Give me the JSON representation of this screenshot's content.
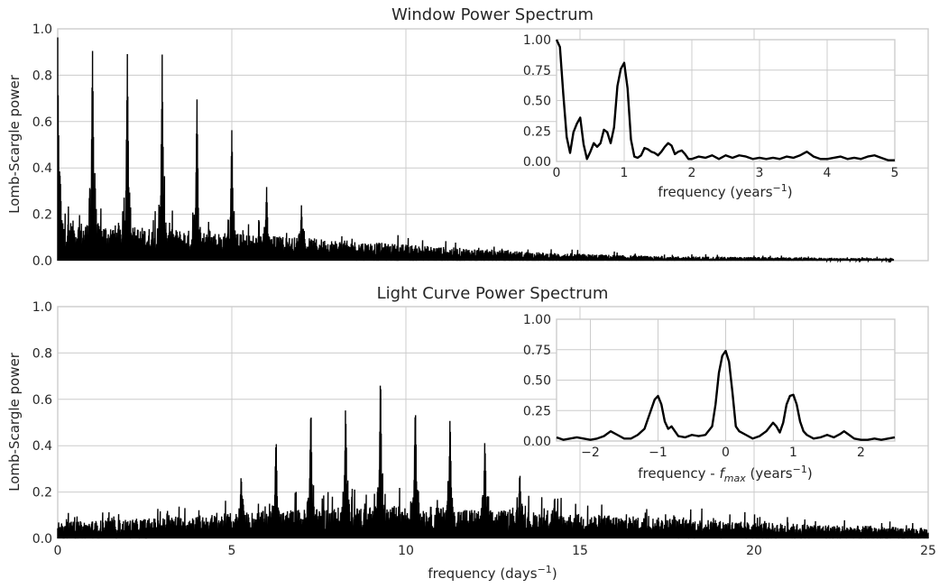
{
  "chart_data": [
    {
      "type": "line",
      "title": "Window Power Spectrum",
      "ylabel": "Lomb-Scargle power",
      "xlabel": "",
      "xlim": [
        0,
        25
      ],
      "ylim": [
        0,
        1.0
      ],
      "yticks": [
        "0.0",
        "0.2",
        "0.4",
        "0.6",
        "0.8",
        "1.0"
      ],
      "x_data_end": 24,
      "grid": true,
      "baseline": [
        [
          0,
          0.18
        ],
        [
          2,
          0.15
        ],
        [
          5,
          0.12
        ],
        [
          8,
          0.09
        ],
        [
          11,
          0.06
        ],
        [
          14,
          0.035
        ],
        [
          17,
          0.02
        ],
        [
          24,
          0.01
        ]
      ],
      "peaks": [
        {
          "x": 0.0,
          "y": 1.0
        },
        {
          "x": 0.06,
          "y": 0.44
        },
        {
          "x": 1.0,
          "y": 0.99
        },
        {
          "x": 2.0,
          "y": 0.98
        },
        {
          "x": 3.0,
          "y": 0.92
        },
        {
          "x": 4.0,
          "y": 0.74
        },
        {
          "x": 5.0,
          "y": 0.61
        },
        {
          "x": 6.0,
          "y": 0.35
        },
        {
          "x": 7.0,
          "y": 0.25
        }
      ],
      "inset": {
        "xlabel": "frequency (years",
        "xlabel_sup": "−1",
        "xlabel_end": ")",
        "xlim": [
          0,
          5
        ],
        "ylim": [
          0,
          1.0
        ],
        "xticks": [
          "0",
          "1",
          "2",
          "3",
          "4",
          "5"
        ],
        "yticks": [
          "0.00",
          "0.25",
          "0.50",
          "0.75",
          "1.00"
        ],
        "x": [
          0,
          0.05,
          0.1,
          0.15,
          0.2,
          0.25,
          0.3,
          0.35,
          0.4,
          0.45,
          0.5,
          0.55,
          0.6,
          0.65,
          0.7,
          0.75,
          0.8,
          0.85,
          0.9,
          0.95,
          1.0,
          1.05,
          1.1,
          1.15,
          1.2,
          1.25,
          1.3,
          1.35,
          1.4,
          1.45,
          1.5,
          1.55,
          1.6,
          1.65,
          1.7,
          1.75,
          1.8,
          1.85,
          1.9,
          1.95,
          2.0,
          2.1,
          2.2,
          2.3,
          2.4,
          2.5,
          2.6,
          2.7,
          2.8,
          2.9,
          3.0,
          3.1,
          3.2,
          3.3,
          3.4,
          3.5,
          3.6,
          3.7,
          3.8,
          3.9,
          4.0,
          4.1,
          4.2,
          4.3,
          4.4,
          4.5,
          4.6,
          4.7,
          4.8,
          4.9,
          5.0
        ],
        "y": [
          1.0,
          0.94,
          0.55,
          0.2,
          0.07,
          0.24,
          0.31,
          0.36,
          0.14,
          0.02,
          0.08,
          0.15,
          0.12,
          0.15,
          0.26,
          0.24,
          0.15,
          0.28,
          0.62,
          0.76,
          0.81,
          0.6,
          0.18,
          0.04,
          0.03,
          0.05,
          0.11,
          0.1,
          0.08,
          0.07,
          0.05,
          0.08,
          0.12,
          0.15,
          0.13,
          0.06,
          0.08,
          0.09,
          0.06,
          0.02,
          0.02,
          0.04,
          0.03,
          0.05,
          0.02,
          0.05,
          0.03,
          0.05,
          0.04,
          0.02,
          0.03,
          0.02,
          0.03,
          0.02,
          0.04,
          0.03,
          0.05,
          0.08,
          0.04,
          0.02,
          0.02,
          0.03,
          0.04,
          0.02,
          0.03,
          0.02,
          0.04,
          0.05,
          0.03,
          0.01,
          0.01
        ]
      }
    },
    {
      "type": "line",
      "title": "Light Curve Power Spectrum",
      "ylabel": "Lomb-Scargle power",
      "xlabel": "frequency (days",
      "xlabel_sup": "−1",
      "xlabel_end": ")",
      "xlim": [
        0,
        25
      ],
      "ylim": [
        0,
        1.0
      ],
      "xticks": [
        "0",
        "5",
        "10",
        "15",
        "20",
        "25"
      ],
      "yticks": [
        "0.0",
        "0.2",
        "0.4",
        "0.6",
        "0.8",
        "1.0"
      ],
      "grid": true,
      "baseline": [
        [
          0,
          0.07
        ],
        [
          3,
          0.09
        ],
        [
          6,
          0.12
        ],
        [
          9,
          0.14
        ],
        [
          10.5,
          0.14
        ],
        [
          13,
          0.12
        ],
        [
          16,
          0.1
        ],
        [
          20,
          0.07
        ],
        [
          25,
          0.045
        ]
      ],
      "peaks": [
        {
          "x": 5.27,
          "y": 0.31
        },
        {
          "x": 6.27,
          "y": 0.48
        },
        {
          "x": 7.27,
          "y": 0.6
        },
        {
          "x": 8.27,
          "y": 0.63
        },
        {
          "x": 9.27,
          "y": 0.74
        },
        {
          "x": 10.27,
          "y": 0.64
        },
        {
          "x": 11.27,
          "y": 0.58
        },
        {
          "x": 12.27,
          "y": 0.46
        },
        {
          "x": 13.27,
          "y": 0.32
        },
        {
          "x": 14.27,
          "y": 0.2
        }
      ],
      "inset": {
        "xlabel": "frequency - ",
        "xlabel_italic": "f",
        "xlabel_sub": "max",
        "xlabel_tail": " (years",
        "xlabel_sup": "−1",
        "xlabel_end": ")",
        "xlim": [
          -2.5,
          2.5
        ],
        "ylim": [
          0,
          1.0
        ],
        "xticks": [
          "−2",
          "−1",
          "0",
          "1",
          "2"
        ],
        "yticks": [
          "0.00",
          "0.25",
          "0.50",
          "0.75",
          "1.00"
        ],
        "x": [
          -2.5,
          -2.4,
          -2.3,
          -2.2,
          -2.1,
          -2.0,
          -1.9,
          -1.8,
          -1.7,
          -1.6,
          -1.5,
          -1.4,
          -1.3,
          -1.2,
          -1.1,
          -1.05,
          -1.0,
          -0.95,
          -0.9,
          -0.85,
          -0.8,
          -0.75,
          -0.7,
          -0.6,
          -0.5,
          -0.4,
          -0.3,
          -0.2,
          -0.15,
          -0.1,
          -0.05,
          0.0,
          0.05,
          0.1,
          0.15,
          0.2,
          0.3,
          0.4,
          0.5,
          0.6,
          0.7,
          0.75,
          0.8,
          0.85,
          0.9,
          0.95,
          1.0,
          1.05,
          1.1,
          1.15,
          1.2,
          1.3,
          1.4,
          1.5,
          1.6,
          1.7,
          1.75,
          1.8,
          1.9,
          2.0,
          2.1,
          2.2,
          2.3,
          2.4,
          2.5
        ],
        "y": [
          0.03,
          0.01,
          0.02,
          0.03,
          0.02,
          0.01,
          0.02,
          0.04,
          0.08,
          0.05,
          0.02,
          0.02,
          0.05,
          0.1,
          0.26,
          0.34,
          0.37,
          0.3,
          0.16,
          0.1,
          0.12,
          0.08,
          0.04,
          0.03,
          0.05,
          0.04,
          0.05,
          0.12,
          0.3,
          0.56,
          0.7,
          0.74,
          0.65,
          0.4,
          0.12,
          0.08,
          0.05,
          0.02,
          0.04,
          0.08,
          0.15,
          0.12,
          0.07,
          0.15,
          0.3,
          0.37,
          0.38,
          0.3,
          0.16,
          0.08,
          0.05,
          0.02,
          0.03,
          0.05,
          0.03,
          0.06,
          0.08,
          0.06,
          0.02,
          0.01,
          0.01,
          0.02,
          0.01,
          0.02,
          0.03
        ]
      }
    }
  ]
}
